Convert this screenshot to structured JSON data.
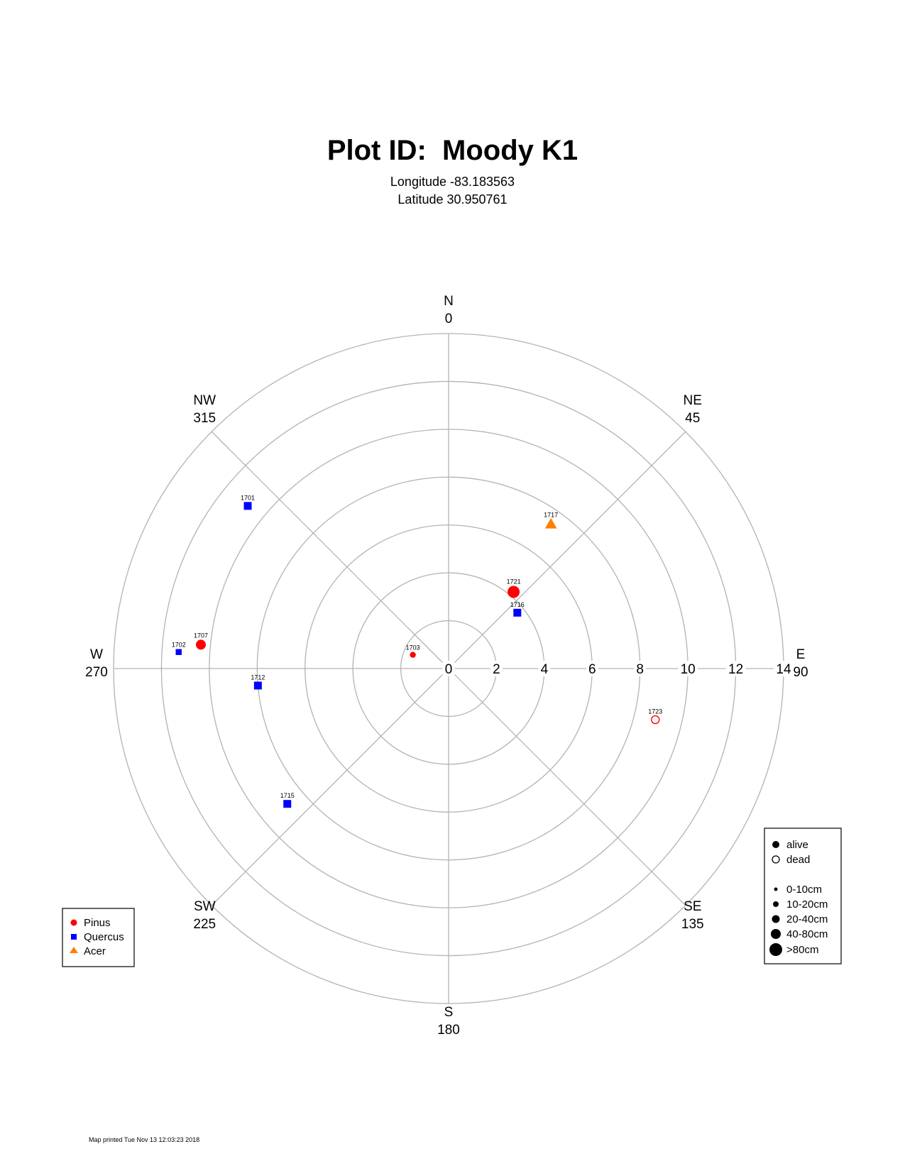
{
  "header": {
    "title": "Plot ID:  Moody K1",
    "longitude": "Longitude -83.183563",
    "latitude": "Latitude 30.950761"
  },
  "chart_data": {
    "type": "scatter",
    "coordinate_system": "polar",
    "radial_ticks": [
      0,
      2,
      4,
      6,
      8,
      10,
      12,
      14
    ],
    "rlim": [
      0,
      14
    ],
    "grid": true,
    "directions": [
      {
        "label": "N",
        "deg": "0",
        "azimuth": 0
      },
      {
        "label": "NE",
        "deg": "45",
        "azimuth": 45
      },
      {
        "label": "E",
        "deg": "90",
        "azimuth": 90
      },
      {
        "label": "SE",
        "deg": "135",
        "azimuth": 135
      },
      {
        "label": "S",
        "deg": "180",
        "azimuth": 180
      },
      {
        "label": "SW",
        "deg": "225",
        "azimuth": 225
      },
      {
        "label": "W",
        "deg": "270",
        "azimuth": 270
      },
      {
        "label": "NW",
        "deg": "315",
        "azimuth": 315
      }
    ],
    "species": [
      {
        "name": "Pinus",
        "color": "#ff0000",
        "shape": "circle"
      },
      {
        "name": "Quercus",
        "color": "#0000ff",
        "shape": "square"
      },
      {
        "name": "Acer",
        "color": "#ff7f00",
        "shape": "triangle"
      }
    ],
    "trees": [
      {
        "id": "1701",
        "species": "Quercus",
        "azimuth": 309,
        "distance": 10.8,
        "dbh_class": "10-20cm",
        "status": "alive"
      },
      {
        "id": "1702",
        "species": "Quercus",
        "azimuth": 273.5,
        "distance": 11.3,
        "dbh_class": "0-10cm",
        "status": "alive"
      },
      {
        "id": "1703",
        "species": "Pinus",
        "azimuth": 291,
        "distance": 1.6,
        "dbh_class": "0-10cm",
        "status": "alive"
      },
      {
        "id": "1707",
        "species": "Pinus",
        "azimuth": 275.5,
        "distance": 10.4,
        "dbh_class": "20-40cm",
        "status": "alive"
      },
      {
        "id": "1712",
        "species": "Quercus",
        "azimuth": 264.9,
        "distance": 8.0,
        "dbh_class": "10-20cm",
        "status": "alive"
      },
      {
        "id": "1715",
        "species": "Quercus",
        "azimuth": 230.0,
        "distance": 8.8,
        "dbh_class": "10-20cm",
        "status": "alive"
      },
      {
        "id": "1716",
        "species": "Quercus",
        "azimuth": 50.9,
        "distance": 3.7,
        "dbh_class": "10-20cm",
        "status": "alive"
      },
      {
        "id": "1717",
        "species": "Acer",
        "azimuth": 35.3,
        "distance": 7.4,
        "dbh_class": "20-40cm",
        "status": "alive"
      },
      {
        "id": "1721",
        "species": "Pinus",
        "azimuth": 40.3,
        "distance": 4.2,
        "dbh_class": "40-80cm",
        "status": "alive"
      },
      {
        "id": "1723",
        "species": "Pinus",
        "azimuth": 103.9,
        "distance": 8.9,
        "dbh_class": "10-20cm",
        "status": "dead"
      }
    ]
  },
  "legend_species": {
    "items": [
      "Pinus",
      "Quercus",
      "Acer"
    ]
  },
  "legend_status": {
    "status": [
      "alive",
      "dead"
    ],
    "sizes": [
      "0-10cm",
      "10-20cm",
      "20-40cm",
      "40-80cm",
      ">80cm"
    ]
  },
  "footer": {
    "printed": "Map printed Tue Nov 13 12:03:23 2018"
  }
}
